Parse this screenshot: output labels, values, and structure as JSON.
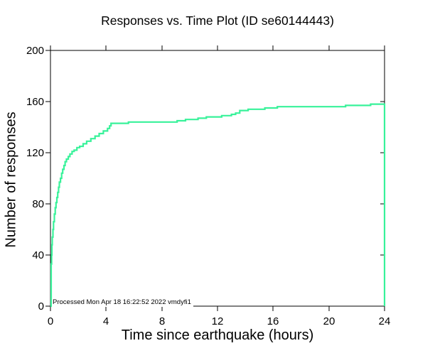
{
  "title": "Responses vs. Time Plot (ID se60144443)",
  "footer": "Processed Mon Apr 18 16:22:52 2022 vmdyfi1",
  "chart_data": {
    "type": "line",
    "style": "step-after",
    "title": "Responses vs. Time Plot (ID se60144443)",
    "xlabel": "Time since earthquake (hours)",
    "ylabel": "Number of responses",
    "xlim": [
      0,
      24
    ],
    "ylim": [
      0,
      200
    ],
    "x_ticks": [
      0,
      4,
      8,
      12,
      16,
      20,
      24
    ],
    "y_ticks": [
      0,
      40,
      80,
      120,
      160,
      200
    ],
    "grid": false,
    "legend": false,
    "line_color": "#38F29A",
    "frame_color": "#000000",
    "series": [
      {
        "name": "cumulative-responses",
        "points": [
          [
            0.0,
            0
          ],
          [
            0.05,
            33
          ],
          [
            0.08,
            40
          ],
          [
            0.1,
            48
          ],
          [
            0.13,
            54
          ],
          [
            0.18,
            60
          ],
          [
            0.22,
            66
          ],
          [
            0.28,
            72
          ],
          [
            0.34,
            77
          ],
          [
            0.4,
            81
          ],
          [
            0.46,
            85
          ],
          [
            0.52,
            89
          ],
          [
            0.58,
            93
          ],
          [
            0.64,
            97
          ],
          [
            0.72,
            100
          ],
          [
            0.8,
            104
          ],
          [
            0.88,
            107
          ],
          [
            0.97,
            110
          ],
          [
            1.05,
            113
          ],
          [
            1.15,
            115
          ],
          [
            1.28,
            117
          ],
          [
            1.4,
            119
          ],
          [
            1.55,
            121
          ],
          [
            1.7,
            122
          ],
          [
            1.9,
            124
          ],
          [
            2.1,
            125
          ],
          [
            2.35,
            127
          ],
          [
            2.6,
            129
          ],
          [
            2.9,
            131
          ],
          [
            3.2,
            133
          ],
          [
            3.5,
            135
          ],
          [
            3.8,
            137
          ],
          [
            4.1,
            139
          ],
          [
            4.25,
            141
          ],
          [
            4.35,
            143
          ],
          [
            5.6,
            144
          ],
          [
            9.1,
            145
          ],
          [
            9.7,
            146
          ],
          [
            10.6,
            147
          ],
          [
            11.2,
            148
          ],
          [
            12.3,
            149
          ],
          [
            13.0,
            150
          ],
          [
            13.3,
            151
          ],
          [
            13.6,
            153
          ],
          [
            14.2,
            154
          ],
          [
            15.4,
            155
          ],
          [
            16.3,
            156
          ],
          [
            21.2,
            157
          ],
          [
            23.0,
            158
          ],
          [
            24.0,
            158
          ],
          [
            24.0,
            0
          ]
        ]
      }
    ]
  }
}
